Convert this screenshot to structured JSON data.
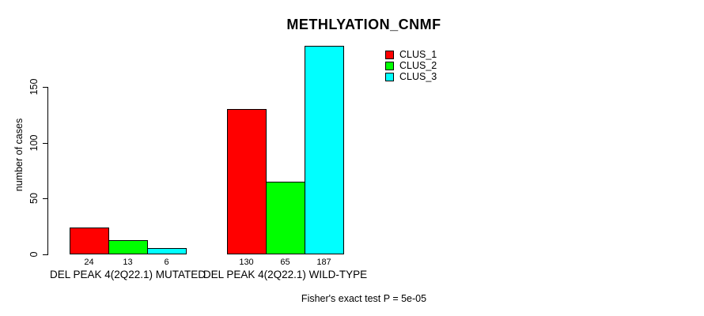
{
  "title": "METHLYATION_CNMF",
  "ylabel": "number of cases",
  "footer": "Fisher's exact test P = 5e-05",
  "legend": {
    "position": "top-right",
    "items": [
      {
        "label": "CLUS_1",
        "color": "#ff0000"
      },
      {
        "label": "CLUS_2",
        "color": "#00ff00"
      },
      {
        "label": "CLUS_3",
        "color": "#00ffff"
      }
    ]
  },
  "chart_data": {
    "type": "bar",
    "title": "METHLYATION_CNMF",
    "xlabel": "",
    "ylabel": "number of cases",
    "categories": [
      "DEL PEAK 4(2Q22.1) MUTATED",
      "DEL PEAK 4(2Q22.1) WILD-TYPE"
    ],
    "series": [
      {
        "name": "CLUS_1",
        "color": "#ff0000",
        "values": [
          24,
          130
        ]
      },
      {
        "name": "CLUS_2",
        "color": "#00ff00",
        "values": [
          13,
          65
        ]
      },
      {
        "name": "CLUS_3",
        "color": "#00ffff",
        "values": [
          6,
          187
        ]
      }
    ],
    "bar_value_labels": [
      [
        24,
        13,
        6
      ],
      [
        130,
        65,
        187
      ]
    ],
    "yticks": [
      0,
      50,
      100,
      150
    ],
    "ylim": [
      0,
      187
    ],
    "grid": false,
    "legend_position": "top-right",
    "annotation": "Fisher's exact test P = 5e-05"
  }
}
